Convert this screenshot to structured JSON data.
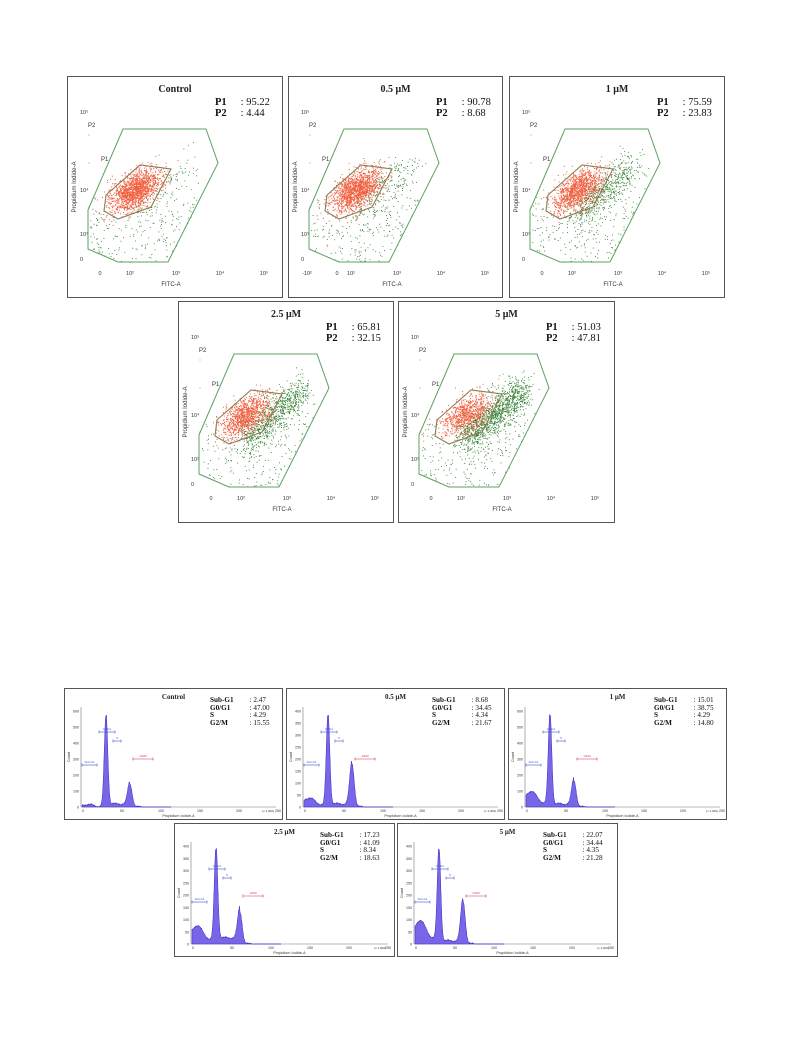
{
  "colors": {
    "gate": "#5fa05f",
    "gate_p1": "#8b7d55",
    "live_dots": "#f06040",
    "dead_dots": "#2e7d2e",
    "hist_fill": "#7766e8",
    "hist_stroke": "#3a2dbf",
    "marker_blue": "#4455cc",
    "marker_red": "#d03050"
  },
  "flow_panels": [
    {
      "id": "fc0",
      "title": "Control",
      "stats": [
        {
          "label": "P1",
          "value": ": 95.22"
        },
        {
          "label": "P2",
          "value": ": 4.44"
        }
      ],
      "x_ticks": [
        "0",
        "10²",
        "10³",
        "10⁴",
        "10⁵"
      ],
      "y_ticks": [
        "0",
        "10³",
        "10⁴",
        "10⁵"
      ],
      "xlabel": "FITC-A",
      "ylabel": "Propidium Iodide-A",
      "gate_labels": [
        "P1",
        "P2"
      ]
    },
    {
      "id": "fc1",
      "title": "0.5 μM",
      "stats": [
        {
          "label": "P1",
          "value": ": 90.78"
        },
        {
          "label": "P2",
          "value": ": 8.68"
        }
      ],
      "x_ticks": [
        "-10²",
        "0",
        "10²",
        "10³",
        "10⁴",
        "10⁵"
      ],
      "y_ticks": [
        "0",
        "10³",
        "10⁴",
        "10⁵"
      ],
      "xlabel": "FITC-A",
      "ylabel": "Propidium Iodide-A",
      "gate_labels": [
        "P1",
        "P2"
      ]
    },
    {
      "id": "fc2",
      "title": "1 μM",
      "stats": [
        {
          "label": "P1",
          "value": ": 75.59"
        },
        {
          "label": "P2",
          "value": ": 23.83"
        }
      ],
      "x_ticks": [
        "0",
        "10²",
        "10³",
        "10⁴",
        "10⁵"
      ],
      "y_ticks": [
        "0",
        "10³",
        "10⁴",
        "10⁵"
      ],
      "xlabel": "FITC-A",
      "ylabel": "Propidium Iodide-A",
      "gate_labels": [
        "P1",
        "P2"
      ]
    },
    {
      "id": "fc3",
      "title": "2.5 μM",
      "stats": [
        {
          "label": "P1",
          "value": ": 65.81"
        },
        {
          "label": "P2",
          "value": ": 32.15"
        }
      ],
      "x_ticks": [
        "0",
        "10²",
        "10³",
        "10⁴",
        "10⁵"
      ],
      "y_ticks": [
        "0",
        "10³",
        "10⁴",
        "10⁵"
      ],
      "xlabel": "FITC-A",
      "ylabel": "Propidium Iodide-A",
      "gate_labels": [
        "P1",
        "P2"
      ]
    },
    {
      "id": "fc4",
      "title": "5 μM",
      "stats": [
        {
          "label": "P1",
          "value": ": 51.03"
        },
        {
          "label": "P2",
          "value": ": 47.81"
        }
      ],
      "x_ticks": [
        "0",
        "10²",
        "10³",
        "10⁴",
        "10⁵"
      ],
      "y_ticks": [
        "0",
        "10³",
        "10⁴",
        "10⁵"
      ],
      "xlabel": "FITC-A",
      "ylabel": "Propidium Iodide-A",
      "gate_labels": [
        "P1",
        "P2"
      ]
    }
  ],
  "hist_panels": [
    {
      "id": "h0",
      "title": "Control",
      "stats": [
        {
          "label": "Sub-G1",
          "value": ": 2.47"
        },
        {
          "label": "G0/G1",
          "value": ": 47.00"
        },
        {
          "label": "S",
          "value": ": 4.29"
        },
        {
          "label": "G2/M",
          "value": ": 15.55"
        }
      ],
      "y_ticks": [
        "0",
        "100",
        "200",
        "300",
        "400",
        "500",
        "600"
      ],
      "x_ticks": [
        "0",
        "50",
        "100",
        "150",
        "200",
        "250"
      ],
      "xlabel": "Propidium Iodide-A",
      "ylabel": "Count",
      "x_unit": "(x 1,000)",
      "markers": [
        "Sub-G1",
        "G0/G1",
        "S",
        "G2/M"
      ]
    },
    {
      "id": "h1",
      "title": "0.5 μM",
      "stats": [
        {
          "label": "Sub-G1",
          "value": ": 8.68"
        },
        {
          "label": "G0/G1",
          "value": ": 34.45"
        },
        {
          "label": "S",
          "value": ": 4.34"
        },
        {
          "label": "G2/M",
          "value": ": 21.67"
        }
      ],
      "y_ticks": [
        "0",
        "50",
        "100",
        "150",
        "200",
        "250",
        "300",
        "350",
        "400"
      ],
      "x_ticks": [
        "0",
        "50",
        "100",
        "150",
        "200",
        "250"
      ],
      "xlabel": "Propidium Iodide-A",
      "ylabel": "Count",
      "x_unit": "(x 1,000)",
      "markers": [
        "Sub-G1",
        "G0/G1",
        "S",
        "G2/M"
      ]
    },
    {
      "id": "h2",
      "title": "1 μM",
      "stats": [
        {
          "label": "Sub-G1",
          "value": ": 15.01"
        },
        {
          "label": "G0/G1",
          "value": ": 38.75"
        },
        {
          "label": "S",
          "value": ": 4.29"
        },
        {
          "label": "G2/M",
          "value": ": 14.80"
        }
      ],
      "y_ticks": [
        "0",
        "100",
        "200",
        "300",
        "400",
        "500",
        "600"
      ],
      "x_ticks": [
        "0",
        "50",
        "100",
        "150",
        "200",
        "250"
      ],
      "xlabel": "Propidium Iodide-A",
      "ylabel": "Count",
      "x_unit": "(x 1,000)",
      "markers": [
        "Sub-G1",
        "G0/G1",
        "S",
        "G2/M"
      ]
    },
    {
      "id": "h3",
      "title": "2.5 μM",
      "stats": [
        {
          "label": "Sub-G1",
          "value": ": 17.23"
        },
        {
          "label": "G0/G1",
          "value": ": 41.09"
        },
        {
          "label": "S",
          "value": ": 8.34"
        },
        {
          "label": "G2/M",
          "value": ": 18.63"
        }
      ],
      "y_ticks": [
        "0",
        "50",
        "100",
        "150",
        "200",
        "250",
        "300",
        "350",
        "400"
      ],
      "x_ticks": [
        "0",
        "50",
        "100",
        "150",
        "200",
        "250"
      ],
      "xlabel": "Propidium Iodide-A",
      "ylabel": "Count",
      "x_unit": "(x 1,000)",
      "markers": [
        "Sub-G1",
        "G0/G1",
        "S",
        "G2/M"
      ]
    },
    {
      "id": "h4",
      "title": "5 μM",
      "stats": [
        {
          "label": "Sub-G1",
          "value": ": 22.07"
        },
        {
          "label": "G0/G1",
          "value": ": 34.44"
        },
        {
          "label": "S",
          "value": ": 4.35"
        },
        {
          "label": "G2/M",
          "value": ": 21.28"
        }
      ],
      "y_ticks": [
        "0",
        "50",
        "100",
        "150",
        "200",
        "250",
        "300",
        "350",
        "400"
      ],
      "x_ticks": [
        "0",
        "50",
        "100",
        "150",
        "200",
        "250"
      ],
      "xlabel": "Propidium Iodide-A",
      "ylabel": "Count",
      "x_unit": "(x 1,000)",
      "markers": [
        "Sub-G1",
        "G0/G1",
        "S",
        "G2/M"
      ]
    }
  ],
  "chart_data": [
    {
      "type": "scatter",
      "panel": "Control",
      "series": [
        {
          "name": "P1",
          "value": 95.22
        },
        {
          "name": "P2",
          "value": 4.44
        }
      ]
    },
    {
      "type": "scatter",
      "panel": "0.5 μM",
      "series": [
        {
          "name": "P1",
          "value": 90.78
        },
        {
          "name": "P2",
          "value": 8.68
        }
      ]
    },
    {
      "type": "scatter",
      "panel": "1 μM",
      "series": [
        {
          "name": "P1",
          "value": 75.59
        },
        {
          "name": "P2",
          "value": 23.83
        }
      ]
    },
    {
      "type": "scatter",
      "panel": "2.5 μM",
      "series": [
        {
          "name": "P1",
          "value": 65.81
        },
        {
          "name": "P2",
          "value": 32.15
        }
      ]
    },
    {
      "type": "scatter",
      "panel": "5 μM",
      "series": [
        {
          "name": "P1",
          "value": 51.03
        },
        {
          "name": "P2",
          "value": 47.81
        }
      ]
    },
    {
      "type": "area",
      "panel": "Control",
      "categories": [
        "Sub-G1",
        "G0/G1",
        "S",
        "G2/M"
      ],
      "values": [
        2.47,
        47.0,
        4.29,
        15.55
      ]
    },
    {
      "type": "area",
      "panel": "0.5 μM",
      "categories": [
        "Sub-G1",
        "G0/G1",
        "S",
        "G2/M"
      ],
      "values": [
        8.68,
        34.45,
        4.34,
        21.67
      ]
    },
    {
      "type": "area",
      "panel": "1 μM",
      "categories": [
        "Sub-G1",
        "G0/G1",
        "S",
        "G2/M"
      ],
      "values": [
        15.01,
        38.75,
        4.29,
        14.8
      ]
    },
    {
      "type": "area",
      "panel": "2.5 μM",
      "categories": [
        "Sub-G1",
        "G0/G1",
        "S",
        "G2/M"
      ],
      "values": [
        17.23,
        41.09,
        8.34,
        18.63
      ]
    },
    {
      "type": "area",
      "panel": "5 μM",
      "categories": [
        "Sub-G1",
        "G0/G1",
        "S",
        "G2/M"
      ],
      "values": [
        22.07,
        34.44,
        4.35,
        21.28
      ]
    }
  ]
}
